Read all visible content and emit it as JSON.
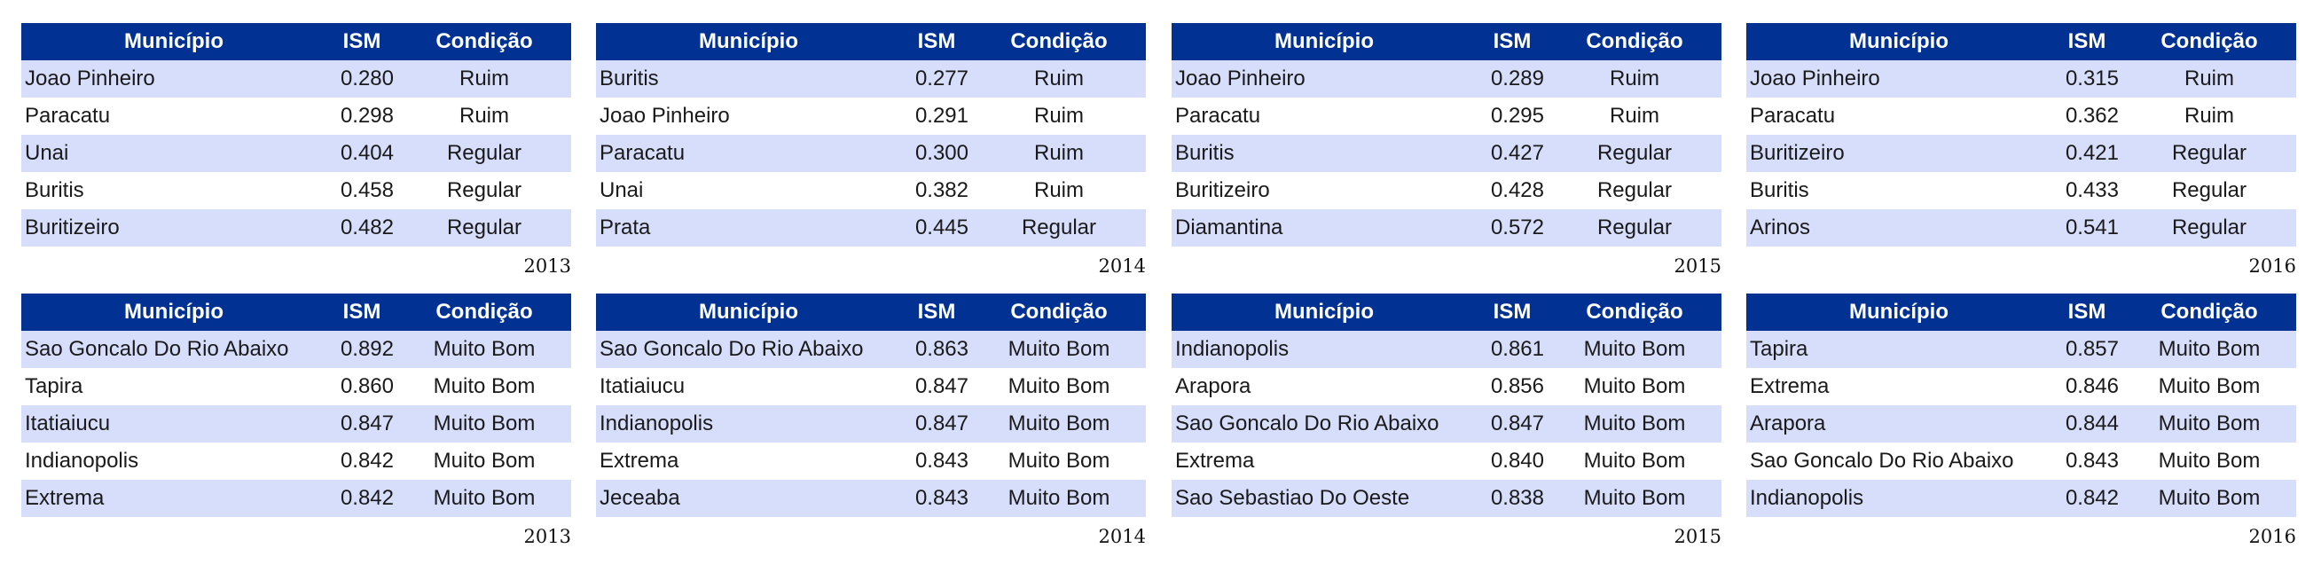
{
  "headers": {
    "municipio": "Município",
    "ism": "ISM",
    "condicao": "Condição"
  },
  "tables": [
    {
      "year": "2013",
      "rows": [
        {
          "municipio": "Joao Pinheiro",
          "ism": "0.280",
          "condicao": "Ruim"
        },
        {
          "municipio": "Paracatu",
          "ism": "0.298",
          "condicao": "Ruim"
        },
        {
          "municipio": "Unai",
          "ism": "0.404",
          "condicao": "Regular"
        },
        {
          "municipio": "Buritis",
          "ism": "0.458",
          "condicao": "Regular"
        },
        {
          "municipio": "Buritizeiro",
          "ism": "0.482",
          "condicao": "Regular"
        }
      ]
    },
    {
      "year": "2014",
      "rows": [
        {
          "municipio": "Buritis",
          "ism": "0.277",
          "condicao": "Ruim"
        },
        {
          "municipio": "Joao Pinheiro",
          "ism": "0.291",
          "condicao": "Ruim"
        },
        {
          "municipio": "Paracatu",
          "ism": "0.300",
          "condicao": "Ruim"
        },
        {
          "municipio": "Unai",
          "ism": "0.382",
          "condicao": "Ruim"
        },
        {
          "municipio": "Prata",
          "ism": "0.445",
          "condicao": "Regular"
        }
      ]
    },
    {
      "year": "2015",
      "rows": [
        {
          "municipio": "Joao Pinheiro",
          "ism": "0.289",
          "condicao": "Ruim"
        },
        {
          "municipio": "Paracatu",
          "ism": "0.295",
          "condicao": "Ruim"
        },
        {
          "municipio": "Buritis",
          "ism": "0.427",
          "condicao": "Regular"
        },
        {
          "municipio": "Buritizeiro",
          "ism": "0.428",
          "condicao": "Regular"
        },
        {
          "municipio": "Diamantina",
          "ism": "0.572",
          "condicao": "Regular"
        }
      ]
    },
    {
      "year": "2016",
      "rows": [
        {
          "municipio": "Joao Pinheiro",
          "ism": "0.315",
          "condicao": "Ruim"
        },
        {
          "municipio": "Paracatu",
          "ism": "0.362",
          "condicao": "Ruim"
        },
        {
          "municipio": "Buritizeiro",
          "ism": "0.421",
          "condicao": "Regular"
        },
        {
          "municipio": "Buritis",
          "ism": "0.433",
          "condicao": "Regular"
        },
        {
          "municipio": "Arinos",
          "ism": "0.541",
          "condicao": "Regular"
        }
      ]
    },
    {
      "year": "2013",
      "rows": [
        {
          "municipio": "Sao Goncalo Do Rio Abaixo",
          "ism": "0.892",
          "condicao": "Muito Bom"
        },
        {
          "municipio": "Tapira",
          "ism": "0.860",
          "condicao": "Muito Bom"
        },
        {
          "municipio": "Itatiaiucu",
          "ism": "0.847",
          "condicao": "Muito Bom"
        },
        {
          "municipio": "Indianopolis",
          "ism": "0.842",
          "condicao": "Muito Bom"
        },
        {
          "municipio": "Extrema",
          "ism": "0.842",
          "condicao": "Muito Bom"
        }
      ]
    },
    {
      "year": "2014",
      "rows": [
        {
          "municipio": "Sao Goncalo Do Rio Abaixo",
          "ism": "0.863",
          "condicao": "Muito Bom"
        },
        {
          "municipio": "Itatiaiucu",
          "ism": "0.847",
          "condicao": "Muito Bom"
        },
        {
          "municipio": "Indianopolis",
          "ism": "0.847",
          "condicao": "Muito Bom"
        },
        {
          "municipio": "Extrema",
          "ism": "0.843",
          "condicao": "Muito Bom"
        },
        {
          "municipio": "Jeceaba",
          "ism": "0.843",
          "condicao": "Muito Bom"
        }
      ]
    },
    {
      "year": "2015",
      "rows": [
        {
          "municipio": "Indianopolis",
          "ism": "0.861",
          "condicao": "Muito Bom"
        },
        {
          "municipio": "Arapora",
          "ism": "0.856",
          "condicao": "Muito Bom"
        },
        {
          "municipio": "Sao Goncalo Do Rio Abaixo",
          "ism": "0.847",
          "condicao": "Muito Bom"
        },
        {
          "municipio": "Extrema",
          "ism": "0.840",
          "condicao": "Muito Bom"
        },
        {
          "municipio": "Sao Sebastiao Do Oeste",
          "ism": "0.838",
          "condicao": "Muito Bom"
        }
      ]
    },
    {
      "year": "2016",
      "rows": [
        {
          "municipio": "Tapira",
          "ism": "0.857",
          "condicao": "Muito Bom"
        },
        {
          "municipio": "Extrema",
          "ism": "0.846",
          "condicao": "Muito Bom"
        },
        {
          "municipio": "Arapora",
          "ism": "0.844",
          "condicao": "Muito Bom"
        },
        {
          "municipio": "Sao Goncalo Do Rio Abaixo",
          "ism": "0.843",
          "condicao": "Muito Bom"
        },
        {
          "municipio": "Indianopolis",
          "ism": "0.842",
          "condicao": "Muito Bom"
        }
      ]
    }
  ],
  "colors": {
    "header_bg": "#013193",
    "header_text": "#ffffff",
    "stripe": "#d6defc"
  }
}
